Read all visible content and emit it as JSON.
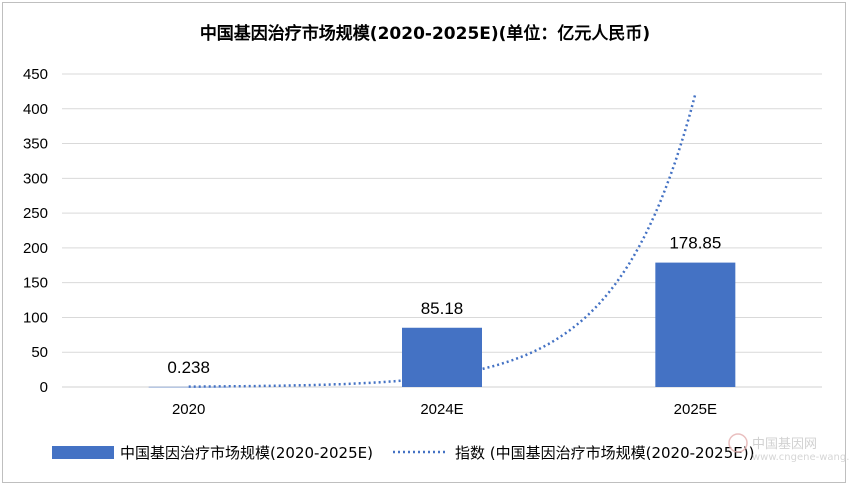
{
  "chart_data": {
    "type": "bar",
    "title": "中国基因治疗市场规模(2020-2025E)(单位：亿元人民币)",
    "categories": [
      "2020",
      "2024E",
      "2025E"
    ],
    "series": [
      {
        "name": "中国基因治疗市场规模(2020-2025E)",
        "type": "bar",
        "color": "#4472C4",
        "values": [
          0.238,
          85.18,
          178.85
        ],
        "labels": [
          "0.238",
          "85.18",
          "178.85"
        ]
      },
      {
        "name": "指数 (中国基因治疗市场规模(2020-2025E))",
        "type": "exponential-trendline",
        "style": "dotted",
        "color": "#4472C4"
      }
    ],
    "ylim": [
      0,
      450
    ],
    "yticks": [
      0,
      50,
      100,
      150,
      200,
      250,
      300,
      350,
      400,
      450
    ],
    "grid": true,
    "legend": "bottom"
  },
  "watermark": {
    "text": "中国基因网",
    "sub": "www.cngene-wang.com"
  }
}
